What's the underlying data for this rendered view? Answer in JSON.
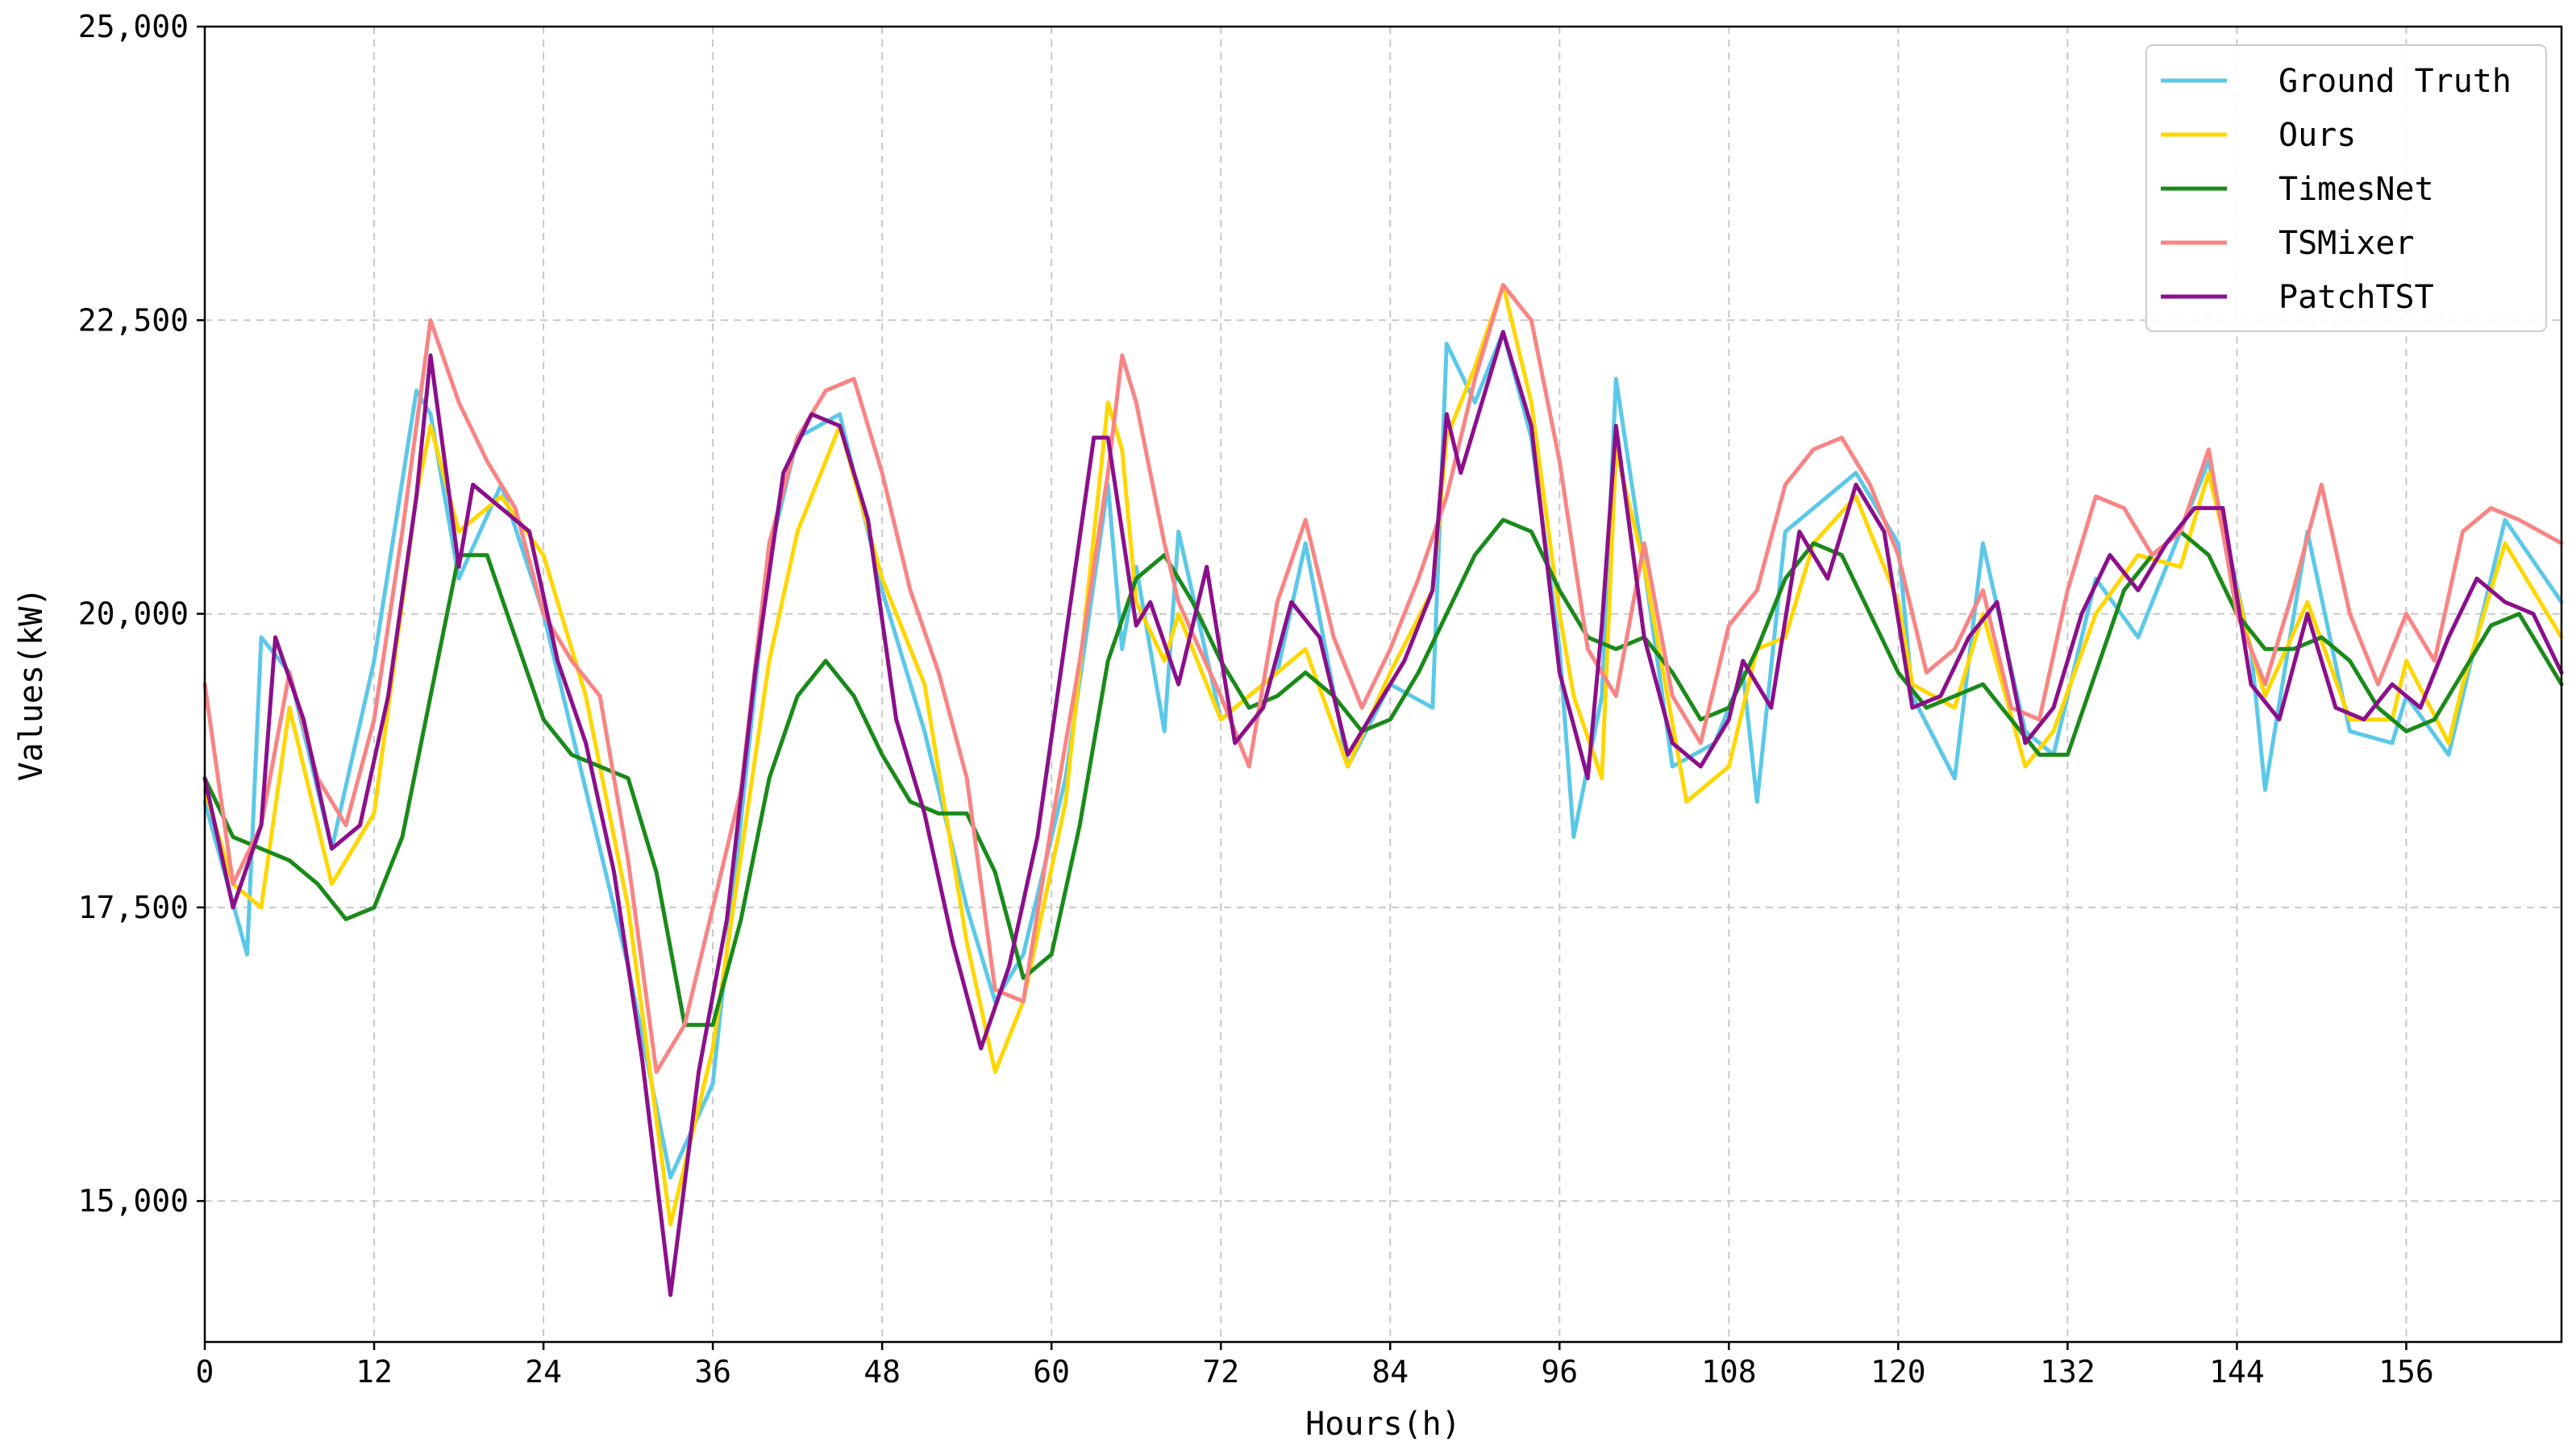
{
  "chart_data": {
    "type": "line",
    "title": "",
    "xlabel": "Hours(h)",
    "ylabel": "Values(kW)",
    "xlim": [
      0,
      167
    ],
    "ylim": [
      13800,
      25000
    ],
    "xticks": [
      0,
      12,
      24,
      36,
      48,
      60,
      72,
      84,
      96,
      108,
      120,
      132,
      144,
      156
    ],
    "xtick_labels": [
      "0",
      "12",
      "24",
      "36",
      "48",
      "60",
      "72",
      "84",
      "96",
      "108",
      "120",
      "132",
      "144",
      "156"
    ],
    "yticks": [
      15000,
      17500,
      20000,
      22500,
      25000
    ],
    "ytick_labels": [
      "15,000",
      "17,500",
      "20,000",
      "22,500",
      "25,000"
    ],
    "grid": true,
    "legend_position": "top-right",
    "series": [
      {
        "name": "Ground Truth",
        "color": "#5bc8e8",
        "x": [
          0,
          3,
          4,
          6,
          9,
          12,
          15,
          16,
          18,
          21,
          24,
          27,
          30,
          33,
          36,
          40,
          42,
          45,
          48,
          51,
          54,
          56,
          58,
          61,
          64,
          65,
          66,
          68,
          69,
          72,
          76,
          78,
          81,
          84,
          87,
          88,
          90,
          92,
          94,
          96,
          97,
          99,
          100,
          102,
          104,
          107,
          109,
          110,
          112,
          114,
          117,
          120,
          121,
          124,
          126,
          129,
          131,
          134,
          137,
          140,
          142,
          145,
          146,
          149,
          152,
          155,
          156,
          159,
          160,
          163,
          167
        ],
        "values": [
          18400,
          17100,
          19800,
          19500,
          18000,
          19600,
          21900,
          21700,
          20300,
          21100,
          20000,
          18500,
          17000,
          15200,
          16000,
          20500,
          21500,
          21700,
          20200,
          19000,
          17500,
          16700,
          17100,
          18600,
          21100,
          19700,
          20400,
          19000,
          20700,
          19100,
          19500,
          20600,
          18700,
          19400,
          19200,
          22300,
          21800,
          22400,
          21500,
          19700,
          18100,
          19300,
          22000,
          20400,
          18700,
          18900,
          19500,
          18400,
          20700,
          20900,
          21200,
          20600,
          19300,
          18600,
          20600,
          19000,
          18800,
          20300,
          19800,
          20700,
          21300,
          19700,
          18500,
          20700,
          19000,
          18900,
          19300,
          18800,
          19300,
          20800,
          20100
        ]
      },
      {
        "name": "Ours",
        "color": "#ffd700",
        "x": [
          0,
          2,
          4,
          6,
          9,
          12,
          15,
          16,
          18,
          21,
          24,
          27,
          30,
          33,
          36,
          40,
          42,
          45,
          48,
          51,
          54,
          56,
          58,
          61,
          64,
          65,
          66,
          68,
          69,
          72,
          76,
          78,
          81,
          84,
          87,
          88,
          90,
          92,
          94,
          96,
          97,
          99,
          100,
          102,
          105,
          108,
          110,
          112,
          114,
          117,
          120,
          121,
          124,
          126,
          129,
          131,
          134,
          137,
          140,
          142,
          145,
          146,
          149,
          152,
          155,
          156,
          159,
          160,
          163,
          167
        ],
        "values": [
          18500,
          17700,
          17500,
          19200,
          17700,
          18300,
          21000,
          21600,
          20700,
          21000,
          20500,
          19300,
          17500,
          14800,
          16300,
          19600,
          20700,
          21600,
          20300,
          19400,
          17200,
          16100,
          16700,
          18400,
          21800,
          21400,
          20100,
          19600,
          20000,
          19100,
          19500,
          19700,
          18700,
          19500,
          20200,
          21500,
          22100,
          22800,
          21800,
          20000,
          19300,
          18600,
          21400,
          20400,
          18400,
          18700,
          19700,
          19800,
          20600,
          21000,
          20100,
          19400,
          19200,
          20000,
          18700,
          19000,
          20000,
          20500,
          20400,
          21200,
          19700,
          19300,
          20100,
          19100,
          19100,
          19600,
          18900,
          19400,
          20600,
          19800
        ]
      },
      {
        "name": "TimesNet",
        "color": "#1a8a1a",
        "x": [
          0,
          2,
          4,
          6,
          8,
          10,
          12,
          14,
          16,
          18,
          20,
          22,
          24,
          26,
          28,
          30,
          32,
          34,
          36,
          38,
          40,
          42,
          44,
          46,
          48,
          50,
          52,
          54,
          56,
          58,
          60,
          62,
          64,
          66,
          68,
          70,
          72,
          74,
          76,
          78,
          80,
          82,
          84,
          86,
          88,
          90,
          92,
          94,
          96,
          98,
          100,
          102,
          104,
          106,
          108,
          110,
          112,
          114,
          116,
          118,
          120,
          122,
          124,
          126,
          128,
          130,
          132,
          134,
          136,
          138,
          140,
          142,
          144,
          146,
          148,
          150,
          152,
          154,
          156,
          158,
          160,
          162,
          164,
          167
        ],
        "values": [
          18600,
          18100,
          18000,
          17900,
          17700,
          17400,
          17500,
          18100,
          19300,
          20500,
          20500,
          19800,
          19100,
          18800,
          18700,
          18600,
          17800,
          16500,
          16500,
          17400,
          18600,
          19300,
          19600,
          19300,
          18800,
          18400,
          18300,
          18300,
          17800,
          16900,
          17100,
          18200,
          19600,
          20300,
          20500,
          20100,
          19600,
          19200,
          19300,
          19500,
          19300,
          19000,
          19100,
          19500,
          20000,
          20500,
          20800,
          20700,
          20200,
          19800,
          19700,
          19800,
          19500,
          19100,
          19200,
          19700,
          20300,
          20600,
          20500,
          20000,
          19500,
          19200,
          19300,
          19400,
          19100,
          18800,
          18800,
          19500,
          20200,
          20500,
          20700,
          20500,
          20000,
          19700,
          19700,
          19800,
          19600,
          19200,
          19000,
          19100,
          19500,
          19900,
          20000,
          19400
        ]
      },
      {
        "name": "TSMixer",
        "color": "#f88484",
        "x": [
          0,
          2,
          4,
          6,
          8,
          10,
          12,
          14,
          16,
          18,
          20,
          22,
          24,
          26,
          28,
          30,
          32,
          34,
          36,
          38,
          40,
          42,
          44,
          46,
          48,
          50,
          52,
          54,
          56,
          58,
          60,
          62,
          64,
          65,
          66,
          68,
          69,
          72,
          74,
          76,
          78,
          80,
          82,
          84,
          86,
          88,
          90,
          92,
          94,
          96,
          98,
          100,
          102,
          104,
          106,
          108,
          110,
          112,
          114,
          116,
          118,
          120,
          122,
          124,
          126,
          128,
          130,
          132,
          134,
          136,
          138,
          140,
          142,
          144,
          146,
          148,
          150,
          152,
          154,
          156,
          158,
          160,
          162,
          164,
          167
        ],
        "values": [
          19400,
          17700,
          18200,
          19500,
          18600,
          18200,
          19100,
          20700,
          22500,
          21800,
          21300,
          20900,
          20000,
          19600,
          19300,
          17900,
          16100,
          16500,
          17500,
          18500,
          20600,
          21500,
          21900,
          22000,
          21200,
          20200,
          19500,
          18600,
          16800,
          16700,
          18200,
          19600,
          21200,
          22200,
          21800,
          20600,
          20100,
          19300,
          18700,
          20100,
          20800,
          19800,
          19200,
          19700,
          20300,
          21000,
          22000,
          22800,
          22500,
          21300,
          19700,
          19300,
          20600,
          19300,
          18900,
          19900,
          20200,
          21100,
          21400,
          21500,
          21100,
          20500,
          19500,
          19700,
          20200,
          19200,
          19100,
          20200,
          21000,
          20900,
          20500,
          20700,
          21400,
          20000,
          19400,
          20200,
          21100,
          20000,
          19400,
          20000,
          19600,
          20700,
          20900,
          20800,
          20600
        ]
      },
      {
        "name": "PatchTST",
        "color": "#8b0f8b",
        "x": [
          0,
          2,
          4,
          5,
          7,
          9,
          11,
          13,
          15,
          16,
          18,
          19,
          21,
          23,
          25,
          27,
          29,
          31,
          33,
          35,
          37,
          39,
          41,
          43,
          45,
          47,
          49,
          51,
          53,
          55,
          57,
          59,
          61,
          63,
          64,
          66,
          67,
          69,
          71,
          73,
          75,
          77,
          79,
          81,
          83,
          85,
          87,
          88,
          89,
          91,
          92,
          94,
          96,
          98,
          99,
          100,
          102,
          104,
          106,
          108,
          109,
          111,
          113,
          115,
          117,
          119,
          121,
          123,
          125,
          127,
          129,
          131,
          133,
          135,
          137,
          139,
          141,
          143,
          145,
          147,
          149,
          151,
          153,
          155,
          157,
          159,
          161,
          163,
          165,
          167
        ],
        "values": [
          18600,
          17500,
          18200,
          19800,
          19100,
          18000,
          18200,
          19300,
          21000,
          22200,
          20400,
          21100,
          20900,
          20700,
          19600,
          18900,
          17800,
          16200,
          14200,
          16100,
          17400,
          19500,
          21200,
          21700,
          21600,
          20800,
          19100,
          18300,
          17200,
          16300,
          17000,
          18100,
          19800,
          21500,
          21500,
          19900,
          20100,
          19400,
          20400,
          18900,
          19200,
          20100,
          19800,
          18800,
          19200,
          19600,
          20200,
          21700,
          21200,
          22000,
          22400,
          21600,
          19500,
          18600,
          19900,
          21600,
          19800,
          18900,
          18700,
          19100,
          19600,
          19200,
          20700,
          20300,
          21100,
          20700,
          19200,
          19300,
          19800,
          20100,
          18900,
          19200,
          20000,
          20500,
          20200,
          20600,
          20900,
          20900,
          19400,
          19100,
          20000,
          19200,
          19100,
          19400,
          19200,
          19800,
          20300,
          20100,
          20000,
          19500
        ]
      }
    ]
  }
}
